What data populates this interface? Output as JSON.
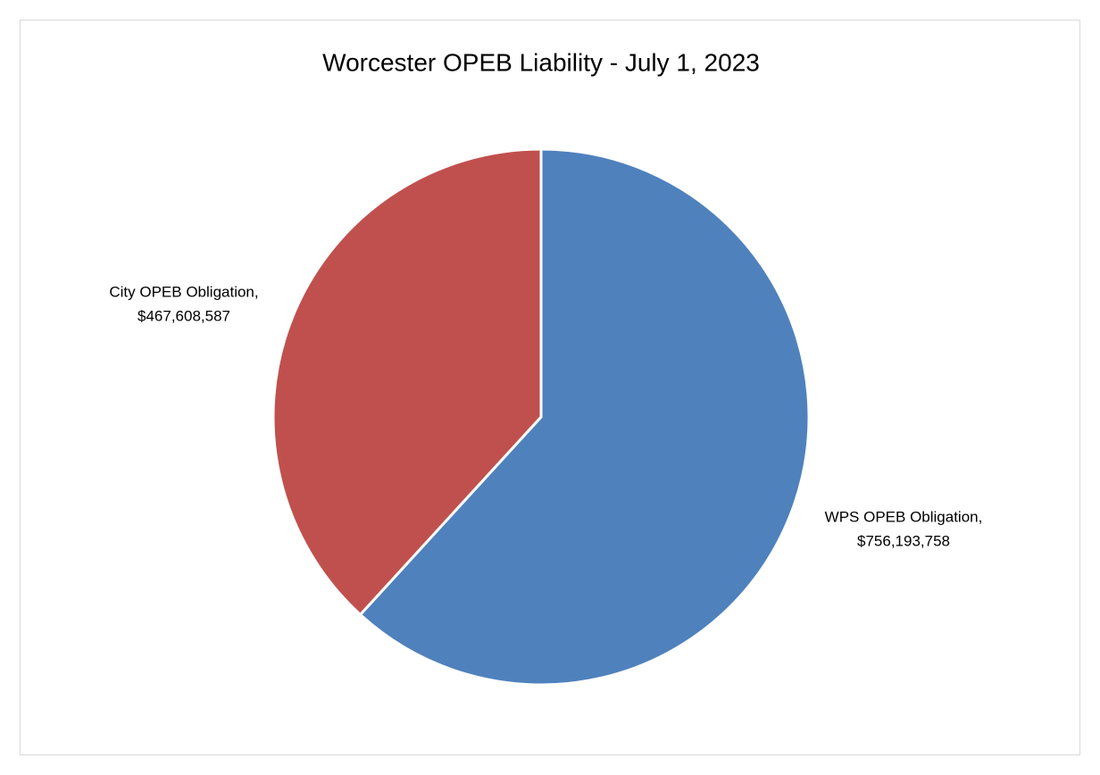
{
  "chart_data": {
    "type": "pie",
    "title": "Worcester OPEB Liability - July 1, 2023",
    "values": [
      756193758,
      467608587
    ],
    "value_labels": [
      [
        "WPS OPEB Obligation,",
        "$756,193,758"
      ],
      [
        "City OPEB Obligation,",
        "$467,608,587"
      ]
    ],
    "colors": [
      "#4f81bd",
      "#c0504d"
    ]
  }
}
